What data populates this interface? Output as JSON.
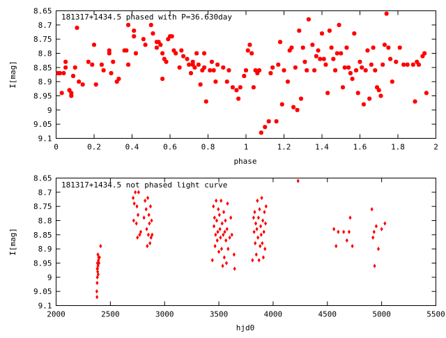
{
  "chart_data": [
    {
      "type": "scatter",
      "title": "181317+1434.5 phased with P=36.630day",
      "xlabel": "phase",
      "ylabel": "I[mag]",
      "xlim": [
        0,
        2
      ],
      "ylim": [
        8.65,
        9.1
      ],
      "y_inverted": true,
      "x_ticks": [
        "0",
        "0.2",
        "0.4",
        "0.6",
        "0.8",
        "1",
        "1.2",
        "1.4",
        "1.6",
        "1.8",
        "2"
      ],
      "y_ticks": [
        "8.65",
        "8.7",
        "8.75",
        "8.8",
        "8.85",
        "8.9",
        "8.95",
        "9",
        "9.05",
        "9.1"
      ],
      "marker_color": "#ff0000",
      "points": [
        [
          0.01,
          8.87
        ],
        [
          0.02,
          8.87
        ],
        [
          0.04,
          8.87
        ],
        [
          0.03,
          8.94
        ],
        [
          0.05,
          8.83
        ],
        [
          0.05,
          8.85
        ],
        [
          0.07,
          8.93
        ],
        [
          0.08,
          8.94
        ],
        [
          0.08,
          8.95
        ],
        [
          0.09,
          8.88
        ],
        [
          0.1,
          8.85
        ],
        [
          0.11,
          8.71
        ],
        [
          0.12,
          8.9
        ],
        [
          0.14,
          8.91
        ],
        [
          0.17,
          8.83
        ],
        [
          0.19,
          8.84
        ],
        [
          0.2,
          8.77
        ],
        [
          0.21,
          8.91
        ],
        [
          0.24,
          8.84
        ],
        [
          0.25,
          8.86
        ],
        [
          0.28,
          8.79
        ],
        [
          0.28,
          8.8
        ],
        [
          0.29,
          8.87
        ],
        [
          0.3,
          8.83
        ],
        [
          0.32,
          8.9
        ],
        [
          0.33,
          8.89
        ],
        [
          0.36,
          8.79
        ],
        [
          0.37,
          8.79
        ],
        [
          0.38,
          8.84
        ],
        [
          0.38,
          8.7
        ],
        [
          0.41,
          8.72
        ],
        [
          0.41,
          8.74
        ],
        [
          0.42,
          8.8
        ],
        [
          0.46,
          8.75
        ],
        [
          0.47,
          8.77
        ],
        [
          0.5,
          8.7
        ],
        [
          0.51,
          8.73
        ],
        [
          0.53,
          8.76
        ],
        [
          0.53,
          8.78
        ],
        [
          0.54,
          8.76
        ],
        [
          0.55,
          8.77
        ],
        [
          0.56,
          8.8
        ],
        [
          0.56,
          8.89
        ],
        [
          0.57,
          8.82
        ],
        [
          0.58,
          8.83
        ],
        [
          0.59,
          8.75
        ],
        [
          0.6,
          8.74
        ],
        [
          0.61,
          8.74
        ],
        [
          0.62,
          8.79
        ],
        [
          0.63,
          8.8
        ],
        [
          0.65,
          8.85
        ],
        [
          0.66,
          8.79
        ],
        [
          0.67,
          8.81
        ],
        [
          0.69,
          8.82
        ],
        [
          0.7,
          8.84
        ],
        [
          0.71,
          8.87
        ],
        [
          0.72,
          8.83
        ],
        [
          0.72,
          8.84
        ],
        [
          0.73,
          8.85
        ],
        [
          0.74,
          8.8
        ],
        [
          0.75,
          8.84
        ],
        [
          0.76,
          8.91
        ],
        [
          0.77,
          8.86
        ],
        [
          0.78,
          8.8
        ],
        [
          0.78,
          8.85
        ],
        [
          0.79,
          8.97
        ],
        [
          0.81,
          8.86
        ],
        [
          0.82,
          8.83
        ],
        [
          0.83,
          8.86
        ],
        [
          0.84,
          8.9
        ],
        [
          0.85,
          8.84
        ],
        [
          0.88,
          8.85
        ],
        [
          0.9,
          8.9
        ],
        [
          0.91,
          8.86
        ],
        [
          0.93,
          8.92
        ],
        [
          0.95,
          8.93
        ],
        [
          0.96,
          8.96
        ],
        [
          0.97,
          8.92
        ],
        [
          0.99,
          8.88
        ],
        [
          1.0,
          8.86
        ],
        [
          1.01,
          8.79
        ],
        [
          1.02,
          8.77
        ],
        [
          1.03,
          8.8
        ],
        [
          1.04,
          8.92
        ],
        [
          1.05,
          8.86
        ],
        [
          1.06,
          8.87
        ],
        [
          1.07,
          8.86
        ],
        [
          1.08,
          9.08
        ],
        [
          1.1,
          9.06
        ],
        [
          1.12,
          9.04
        ],
        [
          1.13,
          8.87
        ],
        [
          1.14,
          8.85
        ],
        [
          1.16,
          9.04
        ],
        [
          1.17,
          8.84
        ],
        [
          1.18,
          8.76
        ],
        [
          1.19,
          8.98
        ],
        [
          1.2,
          8.86
        ],
        [
          1.22,
          8.9
        ],
        [
          1.23,
          8.79
        ],
        [
          1.24,
          8.78
        ],
        [
          1.25,
          8.99
        ],
        [
          1.26,
          8.85
        ],
        [
          1.27,
          9.0
        ],
        [
          1.28,
          8.72
        ],
        [
          1.29,
          8.96
        ],
        [
          1.3,
          8.78
        ],
        [
          1.31,
          8.83
        ],
        [
          1.32,
          8.86
        ],
        [
          1.33,
          8.68
        ],
        [
          1.35,
          8.77
        ],
        [
          1.36,
          8.86
        ],
        [
          1.37,
          8.81
        ],
        [
          1.38,
          8.79
        ],
        [
          1.39,
          8.82
        ],
        [
          1.4,
          8.73
        ],
        [
          1.41,
          8.82
        ],
        [
          1.42,
          8.84
        ],
        [
          1.43,
          8.94
        ],
        [
          1.44,
          8.72
        ],
        [
          1.45,
          8.78
        ],
        [
          1.46,
          8.82
        ],
        [
          1.47,
          8.86
        ],
        [
          1.48,
          8.8
        ],
        [
          1.49,
          8.7
        ],
        [
          1.5,
          8.8
        ],
        [
          1.51,
          8.92
        ],
        [
          1.52,
          8.85
        ],
        [
          1.53,
          8.78
        ],
        [
          1.54,
          8.85
        ],
        [
          1.55,
          8.87
        ],
        [
          1.56,
          8.89
        ],
        [
          1.57,
          8.73
        ],
        [
          1.58,
          8.86
        ],
        [
          1.59,
          8.94
        ],
        [
          1.6,
          8.83
        ],
        [
          1.61,
          8.85
        ],
        [
          1.62,
          8.98
        ],
        [
          1.63,
          8.86
        ],
        [
          1.64,
          8.79
        ],
        [
          1.65,
          8.96
        ],
        [
          1.66,
          8.84
        ],
        [
          1.67,
          8.78
        ],
        [
          1.68,
          8.86
        ],
        [
          1.69,
          8.92
        ],
        [
          1.7,
          8.93
        ],
        [
          1.71,
          8.95
        ],
        [
          1.72,
          8.84
        ],
        [
          1.73,
          8.77
        ],
        [
          1.74,
          8.66
        ],
        [
          1.75,
          8.78
        ],
        [
          1.76,
          8.82
        ],
        [
          1.77,
          8.9
        ],
        [
          1.79,
          8.83
        ],
        [
          1.81,
          8.78
        ],
        [
          1.83,
          8.84
        ],
        [
          1.85,
          8.84
        ],
        [
          1.88,
          8.84
        ],
        [
          1.89,
          8.97
        ],
        [
          1.9,
          8.83
        ],
        [
          1.91,
          8.84
        ],
        [
          1.93,
          8.81
        ],
        [
          1.94,
          8.8
        ],
        [
          1.95,
          8.94
        ]
      ]
    },
    {
      "type": "scatter",
      "title": "181317+1434.5 not phased light curve",
      "xlabel": "hjd0",
      "ylabel": "I[mag]",
      "xlim": [
        2000,
        5500
      ],
      "ylim": [
        8.65,
        9.1
      ],
      "y_inverted": true,
      "x_ticks": [
        "2000",
        "2500",
        "3000",
        "3500",
        "4000",
        "4500",
        "5000",
        "5500"
      ],
      "y_ticks": [
        "8.65",
        "8.7",
        "8.75",
        "8.8",
        "8.85",
        "8.9",
        "8.95",
        "9",
        "9.05",
        "9.1"
      ],
      "marker_color": "#ff0000",
      "points": [
        [
          2375,
          9.05
        ],
        [
          2377,
          9.07
        ],
        [
          2378,
          9.02
        ],
        [
          2379,
          8.97
        ],
        [
          2380,
          9.0
        ],
        [
          2381,
          8.95
        ],
        [
          2382,
          8.97
        ],
        [
          2383,
          8.98
        ],
        [
          2385,
          8.92
        ],
        [
          2386,
          8.96
        ],
        [
          2388,
          8.99
        ],
        [
          2390,
          8.94
        ],
        [
          2392,
          8.93
        ],
        [
          2395,
          8.95
        ],
        [
          2400,
          8.93
        ],
        [
          2410,
          8.89
        ],
        [
          2710,
          8.72
        ],
        [
          2715,
          8.8
        ],
        [
          2720,
          8.74
        ],
        [
          2730,
          8.7
        ],
        [
          2740,
          8.81
        ],
        [
          2745,
          8.75
        ],
        [
          2750,
          8.86
        ],
        [
          2755,
          8.78
        ],
        [
          2760,
          8.7
        ],
        [
          2770,
          8.85
        ],
        [
          2780,
          8.84
        ],
        [
          2810,
          8.79
        ],
        [
          2820,
          8.73
        ],
        [
          2830,
          8.76
        ],
        [
          2835,
          8.83
        ],
        [
          2840,
          8.89
        ],
        [
          2845,
          8.72
        ],
        [
          2850,
          8.85
        ],
        [
          2855,
          8.78
        ],
        [
          2860,
          8.81
        ],
        [
          2865,
          8.88
        ],
        [
          2870,
          8.75
        ],
        [
          2875,
          8.86
        ],
        [
          2880,
          8.8
        ],
        [
          2885,
          8.85
        ],
        [
          3440,
          8.94
        ],
        [
          3450,
          8.75
        ],
        [
          3455,
          8.82
        ],
        [
          3460,
          8.79
        ],
        [
          3465,
          8.89
        ],
        [
          3470,
          8.85
        ],
        [
          3475,
          8.73
        ],
        [
          3480,
          8.8
        ],
        [
          3485,
          8.87
        ],
        [
          3490,
          8.84
        ],
        [
          3495,
          8.76
        ],
        [
          3500,
          8.91
        ],
        [
          3505,
          8.78
        ],
        [
          3510,
          8.83
        ],
        [
          3515,
          8.86
        ],
        [
          3520,
          8.73
        ],
        [
          3525,
          8.9
        ],
        [
          3530,
          8.81
        ],
        [
          3535,
          8.96
        ],
        [
          3540,
          8.85
        ],
        [
          3545,
          8.77
        ],
        [
          3550,
          8.93
        ],
        [
          3555,
          8.84
        ],
        [
          3560,
          8.8
        ],
        [
          3565,
          8.87
        ],
        [
          3570,
          8.95
        ],
        [
          3575,
          8.83
        ],
        [
          3580,
          8.74
        ],
        [
          3585,
          8.9
        ],
        [
          3600,
          8.86
        ],
        [
          3610,
          8.79
        ],
        [
          3620,
          8.85
        ],
        [
          3640,
          8.92
        ],
        [
          3645,
          8.97
        ],
        [
          3810,
          8.94
        ],
        [
          3820,
          8.79
        ],
        [
          3825,
          8.84
        ],
        [
          3830,
          8.77
        ],
        [
          3835,
          8.88
        ],
        [
          3840,
          8.81
        ],
        [
          3845,
          8.92
        ],
        [
          3850,
          8.83
        ],
        [
          3855,
          8.73
        ],
        [
          3860,
          8.86
        ],
        [
          3865,
          8.79
        ],
        [
          3870,
          8.94
        ],
        [
          3875,
          8.76
        ],
        [
          3880,
          8.89
        ],
        [
          3885,
          8.82
        ],
        [
          3890,
          8.85
        ],
        [
          3895,
          8.72
        ],
        [
          3900,
          8.88
        ],
        [
          3905,
          8.8
        ],
        [
          3910,
          8.93
        ],
        [
          3915,
          8.84
        ],
        [
          3920,
          8.77
        ],
        [
          3925,
          8.9
        ],
        [
          3930,
          8.81
        ],
        [
          3935,
          8.75
        ],
        [
          4230,
          8.66
        ],
        [
          4560,
          8.83
        ],
        [
          4580,
          8.89
        ],
        [
          4600,
          8.84
        ],
        [
          4650,
          8.84
        ],
        [
          4680,
          8.87
        ],
        [
          4700,
          8.84
        ],
        [
          4710,
          8.79
        ],
        [
          4730,
          8.89
        ],
        [
          4910,
          8.76
        ],
        [
          4920,
          8.86
        ],
        [
          4930,
          8.84
        ],
        [
          4935,
          8.96
        ],
        [
          4950,
          8.82
        ],
        [
          4970,
          8.9
        ],
        [
          5000,
          8.83
        ],
        [
          5030,
          8.81
        ]
      ]
    }
  ]
}
